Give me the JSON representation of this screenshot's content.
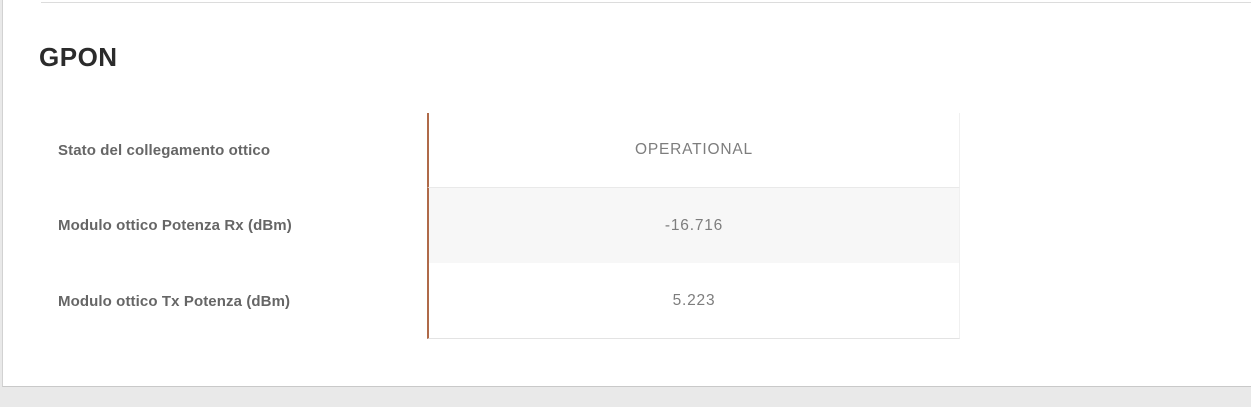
{
  "page": {
    "background_color": "#e9e9e9",
    "card_background_color": "#ffffff",
    "accent_color": "#af6a49",
    "stripe_row_color": "#f7f7f7"
  },
  "section": {
    "title": "GPON"
  },
  "table": {
    "rows": [
      {
        "label": "Stato del collegamento ottico",
        "value": "OPERATIONAL"
      },
      {
        "label": "Modulo ottico Potenza Rx (dBm)",
        "value": "-16.716"
      },
      {
        "label": "Modulo ottico Tx Potenza (dBm)",
        "value": "5.223"
      }
    ]
  }
}
